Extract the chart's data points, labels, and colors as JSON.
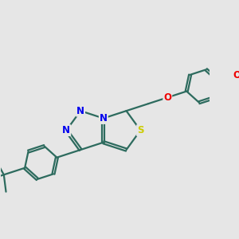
{
  "bg_color": "#e6e6e6",
  "bond_color": "#2d6b5e",
  "bond_width": 1.6,
  "atom_colors": {
    "N": "#0000ee",
    "S": "#cccc00",
    "O": "#ee0000",
    "C": "#2d6b5e"
  },
  "font_size_atom": 8.5,
  "doffset": 0.035,
  "figsize": [
    3.0,
    3.0
  ],
  "dpi": 100,
  "xlim": [
    0.0,
    5.2
  ],
  "ylim": [
    0.5,
    4.2
  ]
}
